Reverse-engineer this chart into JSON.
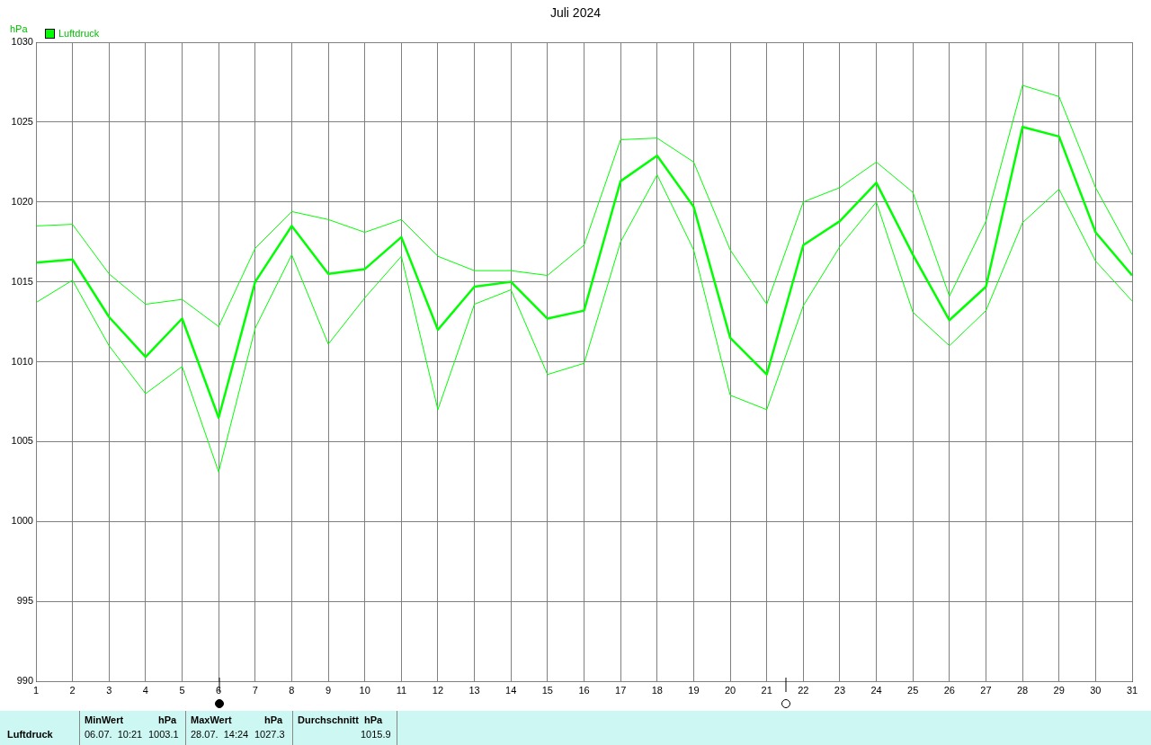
{
  "chart_data": {
    "type": "line",
    "title": "Juli 2024",
    "ylabel": "hPa",
    "x": [
      1,
      2,
      3,
      4,
      5,
      6,
      7,
      8,
      9,
      10,
      11,
      12,
      13,
      14,
      15,
      16,
      17,
      18,
      19,
      20,
      21,
      22,
      23,
      24,
      25,
      26,
      27,
      28,
      29,
      30,
      31
    ],
    "series": [
      {
        "name": "Luftdruck",
        "color": "#00ff00",
        "values": [
          1016.2,
          1016.4,
          1012.8,
          1010.3,
          1012.7,
          1006.5,
          1015.0,
          1018.5,
          1015.5,
          1015.8,
          1017.8,
          1012.0,
          1014.7,
          1015.0,
          1012.7,
          1013.2,
          1021.3,
          1022.9,
          1019.7,
          1011.5,
          1009.2,
          1017.3,
          1018.8,
          1021.2,
          1016.7,
          1012.6,
          1014.7,
          1024.7,
          1024.1,
          1018.1,
          1015.4
        ]
      },
      {
        "color": "#00ff00",
        "values": [
          1018.5,
          1018.6,
          1015.5,
          1013.6,
          1013.9,
          1012.2,
          1017.1,
          1019.4,
          1018.9,
          1018.1,
          1018.9,
          1016.6,
          1015.7,
          1015.7,
          1015.4,
          1017.3,
          1023.9,
          1024.0,
          1022.5,
          1017.0,
          1013.6,
          1020.0,
          1020.9,
          1022.5,
          1020.6,
          1014.1,
          1018.8,
          1027.3,
          1026.6,
          1020.9,
          1016.7
        ]
      },
      {
        "color": "#00ff00",
        "values": [
          1013.7,
          1015.1,
          1011.0,
          1008.0,
          1009.7,
          1003.1,
          1012.1,
          1016.7,
          1011.1,
          1014.0,
          1016.6,
          1007.0,
          1013.6,
          1014.5,
          1009.2,
          1009.9,
          1017.5,
          1021.7,
          1017.0,
          1007.9,
          1007.0,
          1013.5,
          1017.2,
          1020.0,
          1013.1,
          1011.0,
          1013.2,
          1018.7,
          1020.8,
          1016.3,
          1013.8
        ]
      }
    ],
    "xlim": [
      1,
      31
    ],
    "xticks": [
      1,
      2,
      3,
      4,
      5,
      6,
      7,
      8,
      9,
      10,
      11,
      12,
      13,
      14,
      15,
      16,
      17,
      18,
      19,
      20,
      21,
      22,
      23,
      24,
      25,
      26,
      27,
      28,
      29,
      30,
      31
    ],
    "ylim": [
      990,
      1030
    ],
    "yticks": [
      990,
      995,
      1000,
      1005,
      1010,
      1015,
      1020,
      1025,
      1030
    ],
    "grid": true,
    "legend": "top left",
    "marker": "none",
    "line_style": "solid",
    "annotations": [
      "Luftdruck",
      "MinWert",
      "hPa",
      "06.07.  10:21",
      "1003.1",
      "MaxWert",
      "hPa",
      "28.07.  14:24",
      "1027.3",
      "Durchschnitt  hPa",
      "1015.9"
    ]
  }
}
